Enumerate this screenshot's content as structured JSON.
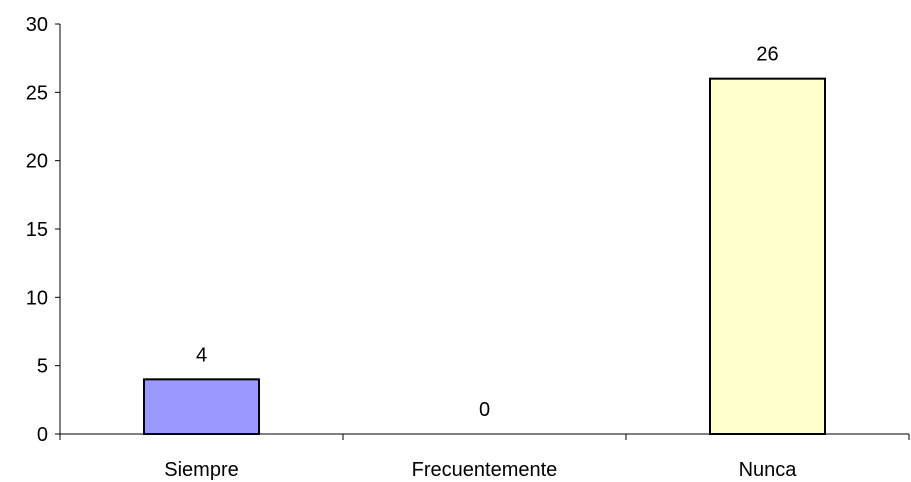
{
  "chart_data": {
    "type": "bar",
    "title": "",
    "xlabel": "",
    "ylabel": "",
    "categories": [
      "Siempre",
      "Frecuentemente",
      "Nunca"
    ],
    "values": [
      4,
      0,
      26
    ],
    "data_labels": [
      "4",
      "0",
      "26"
    ],
    "bar_colors": [
      "#9999ff",
      "#ffffcc",
      "#ffffcc"
    ],
    "bar_outline_color": "#000000",
    "ylim": [
      0,
      30
    ],
    "yticks": [
      0,
      5,
      10,
      15,
      20,
      25,
      30
    ],
    "ytick_labels": [
      "0",
      "5",
      "10",
      "15",
      "20",
      "25",
      "30"
    ],
    "grid": false,
    "legend": "none"
  }
}
